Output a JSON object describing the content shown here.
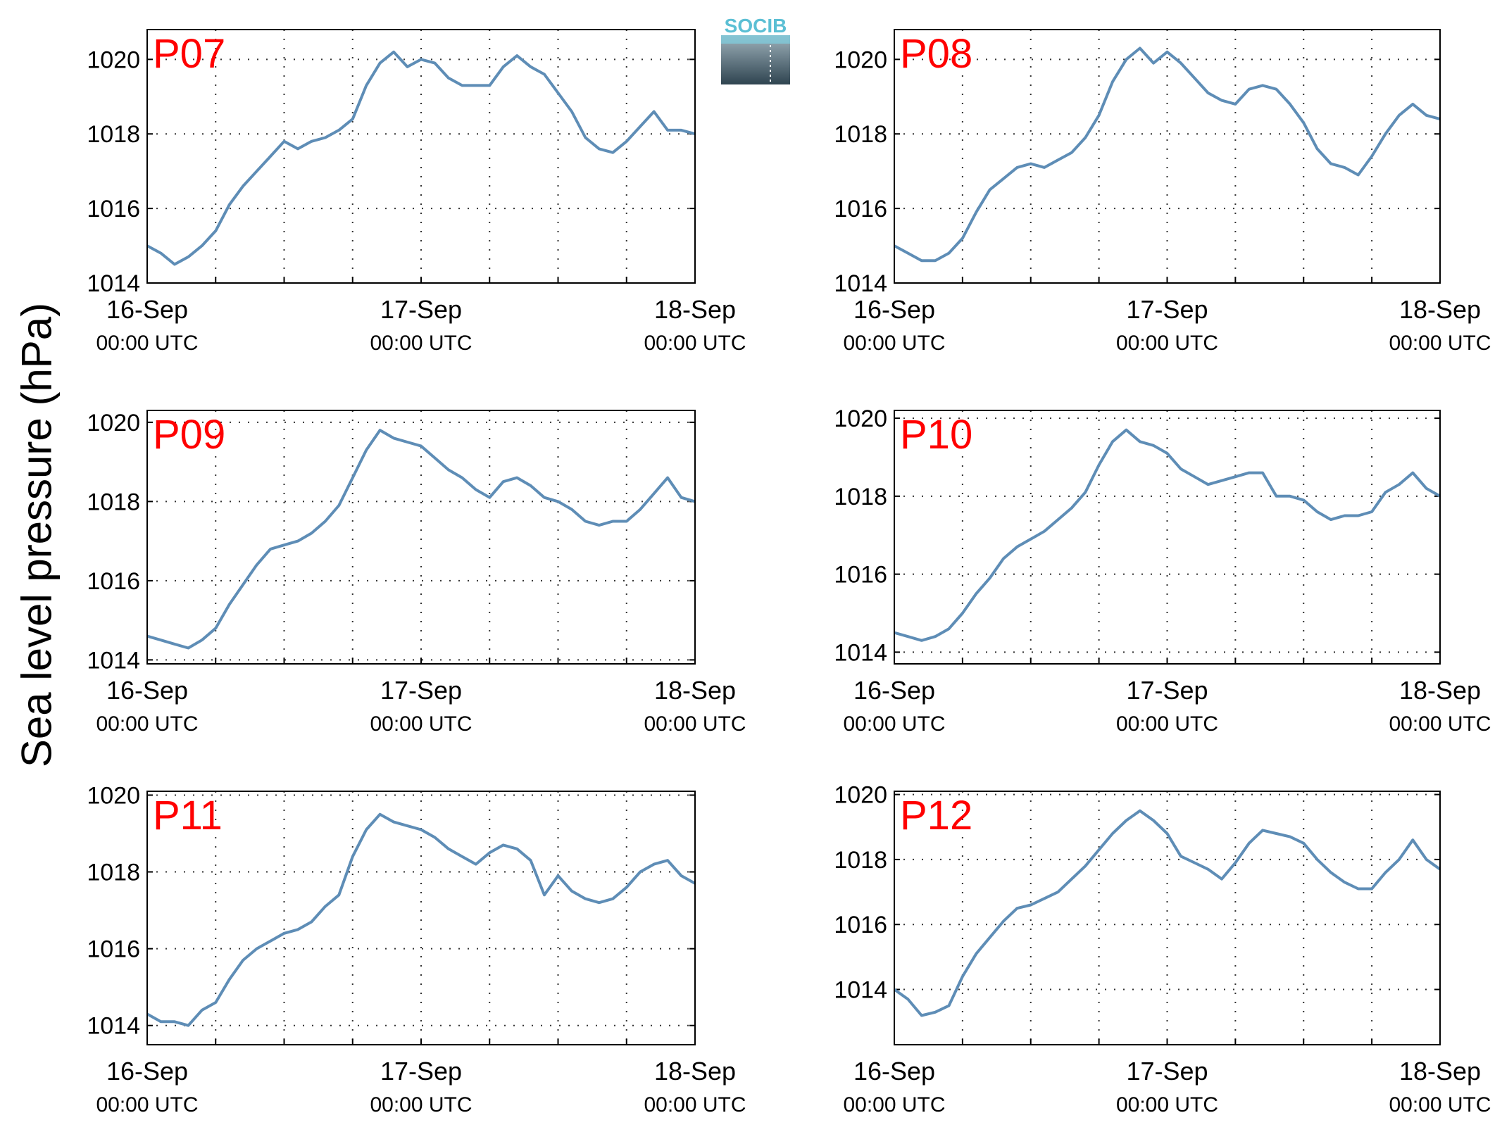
{
  "ylabel": "Sea level pressure (hPa)",
  "logo": {
    "text": "SOCIB",
    "text_color": "#5bbfd4",
    "gradient_top": "#9eb1bb",
    "gradient_bottom": "#2f4450"
  },
  "line_color": "#5e8db6",
  "panel_label_color": "#ff0000",
  "chart_data": [
    {
      "type": "line",
      "title": "P07",
      "ylim": [
        1014,
        1020.8
      ],
      "yticks": [
        1014,
        1016,
        1018,
        1020
      ],
      "x_tick_days": [
        0,
        1,
        2
      ],
      "x_tick_labels": [
        [
          "16-Sep",
          "00:00 UTC"
        ],
        [
          "17-Sep",
          "00:00 UTC"
        ],
        [
          "18-Sep",
          "00:00 UTC"
        ]
      ],
      "xlim_days": [
        0,
        2
      ],
      "grid": true,
      "series": [
        {
          "x": [
            0,
            0.05,
            0.1,
            0.15,
            0.2,
            0.25,
            0.3,
            0.35,
            0.4,
            0.45,
            0.5,
            0.55,
            0.6,
            0.65,
            0.7,
            0.75,
            0.8,
            0.85,
            0.9,
            0.95,
            1,
            1.05,
            1.1,
            1.15,
            1.2,
            1.25,
            1.3,
            1.35,
            1.4,
            1.45,
            1.5,
            1.55,
            1.6,
            1.65,
            1.7,
            1.75,
            1.8,
            1.85,
            1.9,
            1.95,
            2
          ],
          "y": [
            1015,
            1014.8,
            1014.5,
            1014.7,
            1015,
            1015.4,
            1016.1,
            1016.6,
            1017,
            1017.4,
            1017.8,
            1017.6,
            1017.8,
            1017.9,
            1018.1,
            1018.4,
            1019.3,
            1019.9,
            1020.2,
            1019.8,
            1020,
            1019.9,
            1019.5,
            1019.3,
            1019.3,
            1019.3,
            1019.8,
            1020.1,
            1019.8,
            1019.6,
            1019.1,
            1018.6,
            1017.9,
            1017.6,
            1017.5,
            1017.8,
            1018.2,
            1018.6,
            1018.1,
            1018.1,
            1018
          ]
        }
      ]
    },
    {
      "type": "line",
      "title": "P08",
      "ylim": [
        1014,
        1020.8
      ],
      "yticks": [
        1014,
        1016,
        1018,
        1020
      ],
      "x_tick_days": [
        0,
        1,
        2
      ],
      "x_tick_labels": [
        [
          "16-Sep",
          "00:00 UTC"
        ],
        [
          "17-Sep",
          "00:00 UTC"
        ],
        [
          "18-Sep",
          "00:00 UTC"
        ]
      ],
      "xlim_days": [
        0,
        2
      ],
      "grid": true,
      "series": [
        {
          "x": [
            0,
            0.05,
            0.1,
            0.15,
            0.2,
            0.25,
            0.3,
            0.35,
            0.4,
            0.45,
            0.5,
            0.55,
            0.6,
            0.65,
            0.7,
            0.75,
            0.8,
            0.85,
            0.9,
            0.95,
            1,
            1.05,
            1.1,
            1.15,
            1.2,
            1.25,
            1.3,
            1.35,
            1.4,
            1.45,
            1.5,
            1.55,
            1.6,
            1.65,
            1.7,
            1.75,
            1.8,
            1.85,
            1.9,
            1.95,
            2
          ],
          "y": [
            1015,
            1014.8,
            1014.6,
            1014.6,
            1014.8,
            1015.2,
            1015.9,
            1016.5,
            1016.8,
            1017.1,
            1017.2,
            1017.1,
            1017.3,
            1017.5,
            1017.9,
            1018.5,
            1019.4,
            1020,
            1020.3,
            1019.9,
            1020.2,
            1019.9,
            1019.5,
            1019.1,
            1018.9,
            1018.8,
            1019.2,
            1019.3,
            1019.2,
            1018.8,
            1018.3,
            1017.6,
            1017.2,
            1017.1,
            1016.9,
            1017.4,
            1018,
            1018.5,
            1018.8,
            1018.5,
            1018.4
          ]
        }
      ]
    },
    {
      "type": "line",
      "title": "P09",
      "ylim": [
        1013.9,
        1020.3
      ],
      "yticks": [
        1014,
        1016,
        1018,
        1020
      ],
      "x_tick_days": [
        0,
        1,
        2
      ],
      "x_tick_labels": [
        [
          "16-Sep",
          "00:00 UTC"
        ],
        [
          "17-Sep",
          "00:00 UTC"
        ],
        [
          "18-Sep",
          "00:00 UTC"
        ]
      ],
      "xlim_days": [
        0,
        2
      ],
      "grid": true,
      "series": [
        {
          "x": [
            0,
            0.05,
            0.1,
            0.15,
            0.2,
            0.25,
            0.3,
            0.35,
            0.4,
            0.45,
            0.5,
            0.55,
            0.6,
            0.65,
            0.7,
            0.75,
            0.8,
            0.85,
            0.9,
            0.95,
            1,
            1.05,
            1.1,
            1.15,
            1.2,
            1.25,
            1.3,
            1.35,
            1.4,
            1.45,
            1.5,
            1.55,
            1.6,
            1.65,
            1.7,
            1.75,
            1.8,
            1.85,
            1.9,
            1.95,
            2
          ],
          "y": [
            1014.6,
            1014.5,
            1014.4,
            1014.3,
            1014.5,
            1014.8,
            1015.4,
            1015.9,
            1016.4,
            1016.8,
            1016.9,
            1017,
            1017.2,
            1017.5,
            1017.9,
            1018.6,
            1019.3,
            1019.8,
            1019.6,
            1019.5,
            1019.4,
            1019.1,
            1018.8,
            1018.6,
            1018.3,
            1018.1,
            1018.5,
            1018.6,
            1018.4,
            1018.1,
            1018,
            1017.8,
            1017.5,
            1017.4,
            1017.5,
            1017.5,
            1017.8,
            1018.2,
            1018.6,
            1018.1,
            1018
          ]
        }
      ]
    },
    {
      "type": "line",
      "title": "P10",
      "ylim": [
        1013.7,
        1020.2
      ],
      "yticks": [
        1014,
        1016,
        1018,
        1020
      ],
      "x_tick_days": [
        0,
        1,
        2
      ],
      "x_tick_labels": [
        [
          "16-Sep",
          "00:00 UTC"
        ],
        [
          "17-Sep",
          "00:00 UTC"
        ],
        [
          "18-Sep",
          "00:00 UTC"
        ]
      ],
      "xlim_days": [
        0,
        2
      ],
      "grid": true,
      "series": [
        {
          "x": [
            0,
            0.05,
            0.1,
            0.15,
            0.2,
            0.25,
            0.3,
            0.35,
            0.4,
            0.45,
            0.5,
            0.55,
            0.6,
            0.65,
            0.7,
            0.75,
            0.8,
            0.85,
            0.9,
            0.95,
            1,
            1.05,
            1.1,
            1.15,
            1.2,
            1.25,
            1.3,
            1.35,
            1.4,
            1.45,
            1.5,
            1.55,
            1.6,
            1.65,
            1.7,
            1.75,
            1.8,
            1.85,
            1.9,
            1.95,
            2
          ],
          "y": [
            1014.5,
            1014.4,
            1014.3,
            1014.4,
            1014.6,
            1015,
            1015.5,
            1015.9,
            1016.4,
            1016.7,
            1016.9,
            1017.1,
            1017.4,
            1017.7,
            1018.1,
            1018.8,
            1019.4,
            1019.7,
            1019.4,
            1019.3,
            1019.1,
            1018.7,
            1018.5,
            1018.3,
            1018.4,
            1018.5,
            1018.6,
            1018.6,
            1018,
            1018,
            1017.9,
            1017.6,
            1017.4,
            1017.5,
            1017.5,
            1017.6,
            1018.1,
            1018.3,
            1018.6,
            1018.2,
            1018
          ]
        }
      ]
    },
    {
      "type": "line",
      "title": "P11",
      "ylim": [
        1013.5,
        1020.1
      ],
      "yticks": [
        1014,
        1016,
        1018,
        1020
      ],
      "x_tick_days": [
        0,
        1,
        2
      ],
      "x_tick_labels": [
        [
          "16-Sep",
          "00:00 UTC"
        ],
        [
          "17-Sep",
          "00:00 UTC"
        ],
        [
          "18-Sep",
          "00:00 UTC"
        ]
      ],
      "xlim_days": [
        0,
        2
      ],
      "grid": true,
      "series": [
        {
          "x": [
            0,
            0.05,
            0.1,
            0.15,
            0.2,
            0.25,
            0.3,
            0.35,
            0.4,
            0.45,
            0.5,
            0.55,
            0.6,
            0.65,
            0.7,
            0.75,
            0.8,
            0.85,
            0.9,
            0.95,
            1,
            1.05,
            1.1,
            1.15,
            1.2,
            1.25,
            1.3,
            1.35,
            1.4,
            1.45,
            1.5,
            1.55,
            1.6,
            1.65,
            1.7,
            1.75,
            1.8,
            1.85,
            1.9,
            1.95,
            2
          ],
          "y": [
            1014.3,
            1014.1,
            1014.1,
            1014,
            1014.4,
            1014.6,
            1015.2,
            1015.7,
            1016,
            1016.2,
            1016.4,
            1016.5,
            1016.7,
            1017.1,
            1017.4,
            1018.4,
            1019.1,
            1019.5,
            1019.3,
            1019.2,
            1019.1,
            1018.9,
            1018.6,
            1018.4,
            1018.2,
            1018.5,
            1018.7,
            1018.6,
            1018.3,
            1017.4,
            1017.9,
            1017.5,
            1017.3,
            1017.2,
            1017.3,
            1017.6,
            1018,
            1018.2,
            1018.3,
            1017.9,
            1017.7
          ]
        }
      ]
    },
    {
      "type": "line",
      "title": "P12",
      "ylim": [
        1012.3,
        1020.1
      ],
      "yticks": [
        1014,
        1016,
        1018,
        1020
      ],
      "x_tick_days": [
        0,
        1,
        2
      ],
      "x_tick_labels": [
        [
          "16-Sep",
          "00:00 UTC"
        ],
        [
          "17-Sep",
          "00:00 UTC"
        ],
        [
          "18-Sep",
          "00:00 UTC"
        ]
      ],
      "xlim_days": [
        0,
        2
      ],
      "grid": true,
      "series": [
        {
          "x": [
            0,
            0.05,
            0.1,
            0.15,
            0.2,
            0.25,
            0.3,
            0.35,
            0.4,
            0.45,
            0.5,
            0.55,
            0.6,
            0.65,
            0.7,
            0.75,
            0.8,
            0.85,
            0.9,
            0.95,
            1,
            1.05,
            1.1,
            1.15,
            1.2,
            1.25,
            1.3,
            1.35,
            1.4,
            1.45,
            1.5,
            1.55,
            1.6,
            1.65,
            1.7,
            1.75,
            1.8,
            1.85,
            1.9,
            1.95,
            2
          ],
          "y": [
            1014,
            1013.7,
            1013.2,
            1013.3,
            1013.5,
            1014.4,
            1015.1,
            1015.6,
            1016.1,
            1016.5,
            1016.6,
            1016.8,
            1017,
            1017.4,
            1017.8,
            1018.3,
            1018.8,
            1019.2,
            1019.5,
            1019.2,
            1018.8,
            1018.1,
            1017.9,
            1017.7,
            1017.4,
            1017.9,
            1018.5,
            1018.9,
            1018.8,
            1018.7,
            1018.5,
            1018,
            1017.6,
            1017.3,
            1017.1,
            1017.1,
            1017.6,
            1018,
            1018.6,
            1018,
            1017.7
          ]
        }
      ]
    }
  ]
}
